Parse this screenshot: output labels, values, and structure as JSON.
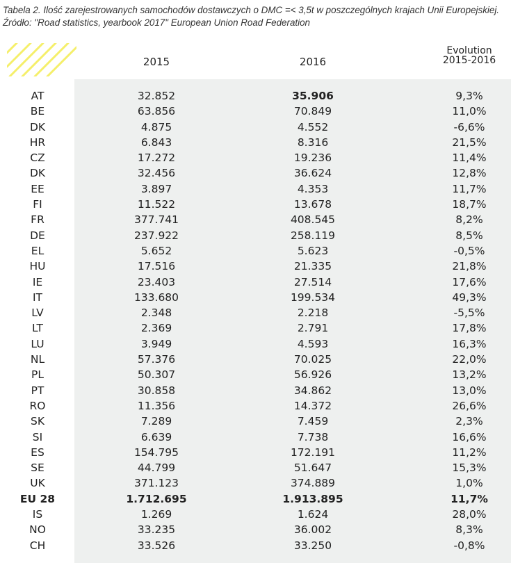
{
  "caption": {
    "line1": "Tabela 2. Ilość zarejestrowanych samochodów dostawczych o DMC =< 3,5t w poszczególnych krajach Unii Europejskiej.",
    "line2": "Źródło: \"Road statistics, yearbook 2017\" European Union Road Federation"
  },
  "columns": {
    "y2015": "2015",
    "y2016": "2016",
    "evolution_line1": "Evolution",
    "evolution_line2": "2015-2016"
  },
  "rows": [
    {
      "country": "AT",
      "v2015": "32.852",
      "v2016": "35.906",
      "evo": "9,3%",
      "bold2016": true
    },
    {
      "country": "BE",
      "v2015": "63.856",
      "v2016": "70.849",
      "evo": "11,0%"
    },
    {
      "country": "DK",
      "v2015": "4.875",
      "v2016": "4.552",
      "evo": "-6,6%"
    },
    {
      "country": "HR",
      "v2015": "6.843",
      "v2016": "8.316",
      "evo": "21,5%"
    },
    {
      "country": "CZ",
      "v2015": "17.272",
      "v2016": "19.236",
      "evo": "11,4%"
    },
    {
      "country": "DK",
      "v2015": "32.456",
      "v2016": "36.624",
      "evo": "12,8%"
    },
    {
      "country": "EE",
      "v2015": "3.897",
      "v2016": "4.353",
      "evo": "11,7%"
    },
    {
      "country": "FI",
      "v2015": "11.522",
      "v2016": "13.678",
      "evo": "18,7%"
    },
    {
      "country": "FR",
      "v2015": "377.741",
      "v2016": "408.545",
      "evo": "8,2%"
    },
    {
      "country": "DE",
      "v2015": "237.922",
      "v2016": "258.119",
      "evo": "8,5%"
    },
    {
      "country": "EL",
      "v2015": "5.652",
      "v2016": "5.623",
      "evo": "-0,5%"
    },
    {
      "country": "HU",
      "v2015": "17.516",
      "v2016": "21.335",
      "evo": "21,8%"
    },
    {
      "country": "IE",
      "v2015": "23.403",
      "v2016": "27.514",
      "evo": "17,6%"
    },
    {
      "country": "IT",
      "v2015": "133.680",
      "v2016": "199.534",
      "evo": "49,3%"
    },
    {
      "country": "LV",
      "v2015": "2.348",
      "v2016": "2.218",
      "evo": "-5,5%"
    },
    {
      "country": "LT",
      "v2015": "2.369",
      "v2016": "2.791",
      "evo": "17,8%"
    },
    {
      "country": "LU",
      "v2015": "3.949",
      "v2016": "4.593",
      "evo": "16,3%"
    },
    {
      "country": "NL",
      "v2015": "57.376",
      "v2016": "70.025",
      "evo": "22,0%"
    },
    {
      "country": "PL",
      "v2015": "50.307",
      "v2016": "56.926",
      "evo": "13,2%"
    },
    {
      "country": "PT",
      "v2015": "30.858",
      "v2016": "34.862",
      "evo": "13,0%"
    },
    {
      "country": "RO",
      "v2015": "11.356",
      "v2016": "14.372",
      "evo": "26,6%"
    },
    {
      "country": "SK",
      "v2015": "7.289",
      "v2016": "7.459",
      "evo": "2,3%"
    },
    {
      "country": "SI",
      "v2015": "6.639",
      "v2016": "7.738",
      "evo": "16,6%"
    },
    {
      "country": "ES",
      "v2015": "154.795",
      "v2016": "172.191",
      "evo": "11,2%"
    },
    {
      "country": "SE",
      "v2015": "44.799",
      "v2016": "51.647",
      "evo": "15,3%"
    },
    {
      "country": "UK",
      "v2015": "371.123",
      "v2016": "374.889",
      "evo": "1,0%"
    },
    {
      "country": "EU 28",
      "v2015": "1.712.695",
      "v2016": "1.913.895",
      "evo": "11,7%",
      "bold": true
    },
    {
      "country": "IS",
      "v2015": "1.269",
      "v2016": "1.624",
      "evo": "28,0%"
    },
    {
      "country": "NO",
      "v2015": "33.235",
      "v2016": "36.002",
      "evo": "8,3%"
    },
    {
      "country": "CH",
      "v2015": "33.526",
      "v2016": "33.250",
      "evo": "-0,8%"
    }
  ],
  "colors": {
    "band": "#eef0ef",
    "hatch": "#f5ef6a"
  }
}
